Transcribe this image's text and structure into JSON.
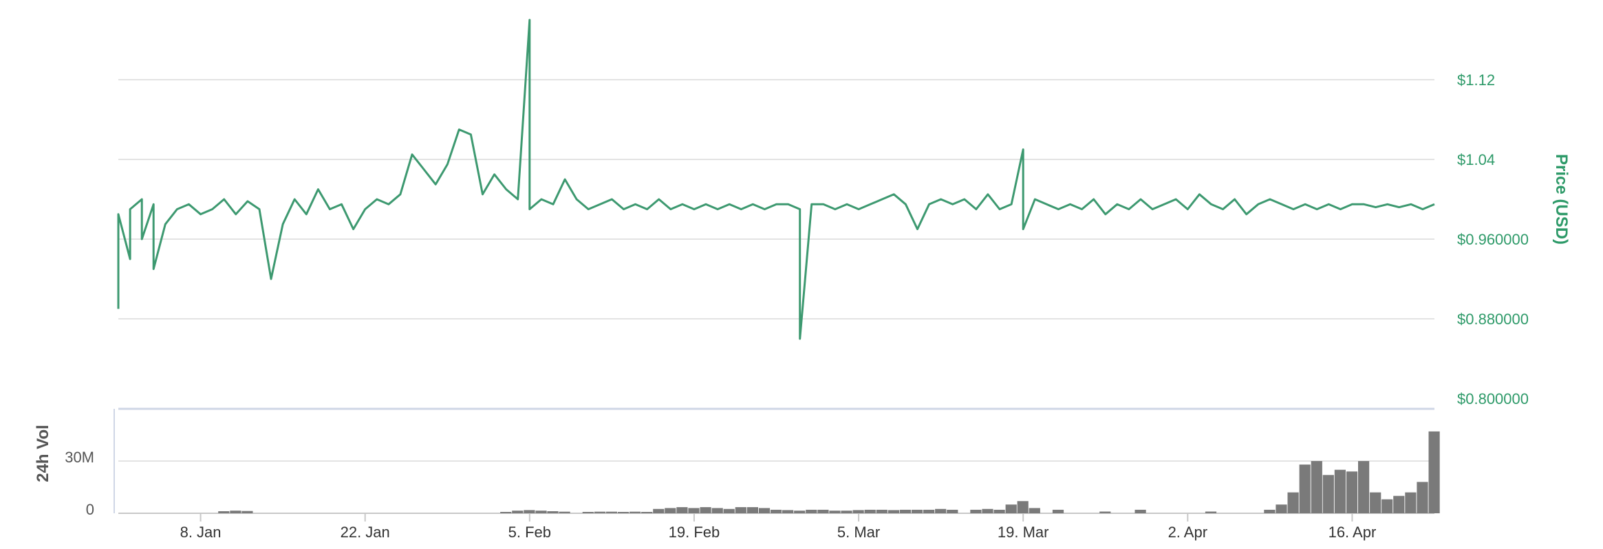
{
  "chart_data": [
    {
      "type": "line",
      "name": "price",
      "ylabel": "Price (USD)",
      "ylim": [
        0.8,
        1.2
      ],
      "y_ticks": [
        {
          "value": 1.12,
          "label": "$1.12"
        },
        {
          "value": 1.04,
          "label": "$1.04"
        },
        {
          "value": 0.96,
          "label": "$0.960000"
        },
        {
          "value": 0.88,
          "label": "$0.880000"
        },
        {
          "value": 0.8,
          "label": "$0.800000"
        }
      ],
      "x_range": [
        "2018-01-01",
        "2018-04-23"
      ],
      "x_ticks": [
        {
          "date": "2018-01-08",
          "label": "8. Jan"
        },
        {
          "date": "2018-01-22",
          "label": "22. Jan"
        },
        {
          "date": "2018-02-05",
          "label": "5. Feb"
        },
        {
          "date": "2018-02-19",
          "label": "19. Feb"
        },
        {
          "date": "2018-03-05",
          "label": "5. Mar"
        },
        {
          "date": "2018-03-19",
          "label": "19. Mar"
        },
        {
          "date": "2018-04-02",
          "label": "2. Apr"
        },
        {
          "date": "2018-04-16",
          "label": "16. Apr"
        }
      ],
      "grid": true,
      "color": "#3d9970",
      "points": [
        [
          "2018-01-01",
          0.89
        ],
        [
          "2018-01-01",
          0.985
        ],
        [
          "2018-01-02",
          0.94
        ],
        [
          "2018-01-02",
          0.99
        ],
        [
          "2018-01-03",
          1.0
        ],
        [
          "2018-01-03",
          0.96
        ],
        [
          "2018-01-04",
          0.995
        ],
        [
          "2018-01-04",
          0.93
        ],
        [
          "2018-01-05",
          0.975
        ],
        [
          "2018-01-06",
          0.99
        ],
        [
          "2018-01-07",
          0.995
        ],
        [
          "2018-01-08",
          0.985
        ],
        [
          "2018-01-09",
          0.99
        ],
        [
          "2018-01-10",
          1.0
        ],
        [
          "2018-01-11",
          0.985
        ],
        [
          "2018-01-12",
          0.998
        ],
        [
          "2018-01-13",
          0.99
        ],
        [
          "2018-01-14",
          0.92
        ],
        [
          "2018-01-15",
          0.975
        ],
        [
          "2018-01-16",
          1.0
        ],
        [
          "2018-01-17",
          0.985
        ],
        [
          "2018-01-18",
          1.01
        ],
        [
          "2018-01-19",
          0.99
        ],
        [
          "2018-01-20",
          0.995
        ],
        [
          "2018-01-21",
          0.97
        ],
        [
          "2018-01-22",
          0.99
        ],
        [
          "2018-01-23",
          1.0
        ],
        [
          "2018-01-24",
          0.995
        ],
        [
          "2018-01-25",
          1.005
        ],
        [
          "2018-01-26",
          1.045
        ],
        [
          "2018-01-27",
          1.03
        ],
        [
          "2018-01-28",
          1.015
        ],
        [
          "2018-01-29",
          1.035
        ],
        [
          "2018-01-30",
          1.07
        ],
        [
          "2018-01-31",
          1.065
        ],
        [
          "2018-02-01",
          1.005
        ],
        [
          "2018-02-02",
          1.025
        ],
        [
          "2018-02-03",
          1.01
        ],
        [
          "2018-02-04",
          1.0
        ],
        [
          "2018-02-05",
          1.18
        ],
        [
          "2018-02-05",
          0.99
        ],
        [
          "2018-02-06",
          1.0
        ],
        [
          "2018-02-07",
          0.995
        ],
        [
          "2018-02-08",
          1.02
        ],
        [
          "2018-02-09",
          1.0
        ],
        [
          "2018-02-10",
          0.99
        ],
        [
          "2018-02-11",
          0.995
        ],
        [
          "2018-02-12",
          1.0
        ],
        [
          "2018-02-13",
          0.99
        ],
        [
          "2018-02-14",
          0.995
        ],
        [
          "2018-02-15",
          0.99
        ],
        [
          "2018-02-16",
          1.0
        ],
        [
          "2018-02-17",
          0.99
        ],
        [
          "2018-02-18",
          0.995
        ],
        [
          "2018-02-19",
          0.99
        ],
        [
          "2018-02-20",
          0.995
        ],
        [
          "2018-02-21",
          0.99
        ],
        [
          "2018-02-22",
          0.995
        ],
        [
          "2018-02-23",
          0.99
        ],
        [
          "2018-02-24",
          0.995
        ],
        [
          "2018-02-25",
          0.99
        ],
        [
          "2018-02-26",
          0.995
        ],
        [
          "2018-02-27",
          0.995
        ],
        [
          "2018-02-28",
          0.99
        ],
        [
          "2018-02-28",
          0.86
        ],
        [
          "2018-03-01",
          0.995
        ],
        [
          "2018-03-02",
          0.995
        ],
        [
          "2018-03-03",
          0.99
        ],
        [
          "2018-03-04",
          0.995
        ],
        [
          "2018-03-05",
          0.99
        ],
        [
          "2018-03-06",
          0.995
        ],
        [
          "2018-03-07",
          1.0
        ],
        [
          "2018-03-08",
          1.005
        ],
        [
          "2018-03-09",
          0.995
        ],
        [
          "2018-03-10",
          0.97
        ],
        [
          "2018-03-11",
          0.995
        ],
        [
          "2018-03-12",
          1.0
        ],
        [
          "2018-03-13",
          0.995
        ],
        [
          "2018-03-14",
          1.0
        ],
        [
          "2018-03-15",
          0.99
        ],
        [
          "2018-03-16",
          1.005
        ],
        [
          "2018-03-17",
          0.99
        ],
        [
          "2018-03-18",
          0.995
        ],
        [
          "2018-03-19",
          1.05
        ],
        [
          "2018-03-19",
          0.97
        ],
        [
          "2018-03-20",
          1.0
        ],
        [
          "2018-03-21",
          0.995
        ],
        [
          "2018-03-22",
          0.99
        ],
        [
          "2018-03-23",
          0.995
        ],
        [
          "2018-03-24",
          0.99
        ],
        [
          "2018-03-25",
          1.0
        ],
        [
          "2018-03-26",
          0.985
        ],
        [
          "2018-03-27",
          0.995
        ],
        [
          "2018-03-28",
          0.99
        ],
        [
          "2018-03-29",
          1.0
        ],
        [
          "2018-03-30",
          0.99
        ],
        [
          "2018-03-31",
          0.995
        ],
        [
          "2018-04-01",
          1.0
        ],
        [
          "2018-04-02",
          0.99
        ],
        [
          "2018-04-03",
          1.005
        ],
        [
          "2018-04-04",
          0.995
        ],
        [
          "2018-04-05",
          0.99
        ],
        [
          "2018-04-06",
          1.0
        ],
        [
          "2018-04-07",
          0.985
        ],
        [
          "2018-04-08",
          0.995
        ],
        [
          "2018-04-09",
          1.0
        ],
        [
          "2018-04-10",
          0.995
        ],
        [
          "2018-04-11",
          0.99
        ],
        [
          "2018-04-12",
          0.995
        ],
        [
          "2018-04-13",
          0.99
        ],
        [
          "2018-04-14",
          0.995
        ],
        [
          "2018-04-15",
          0.99
        ],
        [
          "2018-04-16",
          0.995
        ],
        [
          "2018-04-17",
          0.995
        ],
        [
          "2018-04-18",
          0.992
        ],
        [
          "2018-04-19",
          0.995
        ],
        [
          "2018-04-20",
          0.992
        ],
        [
          "2018-04-21",
          0.995
        ],
        [
          "2018-04-22",
          0.99
        ],
        [
          "2018-04-23",
          0.995
        ]
      ]
    },
    {
      "type": "bar",
      "name": "volume",
      "ylabel": "24h Vol",
      "ylim": [
        0,
        60000000
      ],
      "y_ticks": [
        {
          "value": 30000000,
          "label": "30M"
        },
        {
          "value": 0,
          "label": "0"
        }
      ],
      "color": "#7a7a7a",
      "points": [
        [
          "2018-01-10",
          1200000
        ],
        [
          "2018-01-11",
          1500000
        ],
        [
          "2018-01-12",
          1300000
        ],
        [
          "2018-02-03",
          800000
        ],
        [
          "2018-02-04",
          1500000
        ],
        [
          "2018-02-05",
          1800000
        ],
        [
          "2018-02-06",
          1500000
        ],
        [
          "2018-02-07",
          1200000
        ],
        [
          "2018-02-08",
          900000
        ],
        [
          "2018-02-10",
          800000
        ],
        [
          "2018-02-11",
          900000
        ],
        [
          "2018-02-12",
          900000
        ],
        [
          "2018-02-13",
          800000
        ],
        [
          "2018-02-14",
          900000
        ],
        [
          "2018-02-15",
          800000
        ],
        [
          "2018-02-16",
          2500000
        ],
        [
          "2018-02-17",
          3000000
        ],
        [
          "2018-02-18",
          3500000
        ],
        [
          "2018-02-19",
          3000000
        ],
        [
          "2018-02-20",
          3500000
        ],
        [
          "2018-02-21",
          3000000
        ],
        [
          "2018-02-22",
          2500000
        ],
        [
          "2018-02-23",
          3500000
        ],
        [
          "2018-02-24",
          3500000
        ],
        [
          "2018-02-25",
          3000000
        ],
        [
          "2018-02-26",
          2000000
        ],
        [
          "2018-02-27",
          1800000
        ],
        [
          "2018-02-28",
          1500000
        ],
        [
          "2018-03-01",
          2000000
        ],
        [
          "2018-03-02",
          2000000
        ],
        [
          "2018-03-03",
          1500000
        ],
        [
          "2018-03-04",
          1500000
        ],
        [
          "2018-03-05",
          1800000
        ],
        [
          "2018-03-06",
          2000000
        ],
        [
          "2018-03-07",
          2000000
        ],
        [
          "2018-03-08",
          1800000
        ],
        [
          "2018-03-09",
          2000000
        ],
        [
          "2018-03-10",
          2000000
        ],
        [
          "2018-03-11",
          2000000
        ],
        [
          "2018-03-12",
          2500000
        ],
        [
          "2018-03-13",
          2000000
        ],
        [
          "2018-03-15",
          2000000
        ],
        [
          "2018-03-16",
          2500000
        ],
        [
          "2018-03-17",
          2000000
        ],
        [
          "2018-03-18",
          5000000
        ],
        [
          "2018-03-19",
          7000000
        ],
        [
          "2018-03-20",
          3000000
        ],
        [
          "2018-03-22",
          2000000
        ],
        [
          "2018-03-26",
          1000000
        ],
        [
          "2018-03-29",
          2000000
        ],
        [
          "2018-04-04",
          1000000
        ],
        [
          "2018-04-09",
          2000000
        ],
        [
          "2018-04-10",
          5000000
        ],
        [
          "2018-04-11",
          12000000
        ],
        [
          "2018-04-12",
          28000000
        ],
        [
          "2018-04-13",
          30000000
        ],
        [
          "2018-04-14",
          22000000
        ],
        [
          "2018-04-15",
          25000000
        ],
        [
          "2018-04-16",
          24000000
        ],
        [
          "2018-04-17",
          30000000
        ],
        [
          "2018-04-18",
          12000000
        ],
        [
          "2018-04-19",
          8000000
        ],
        [
          "2018-04-20",
          10000000
        ],
        [
          "2018-04-21",
          12000000
        ],
        [
          "2018-04-22",
          18000000
        ],
        [
          "2018-04-23",
          47000000
        ]
      ]
    }
  ]
}
